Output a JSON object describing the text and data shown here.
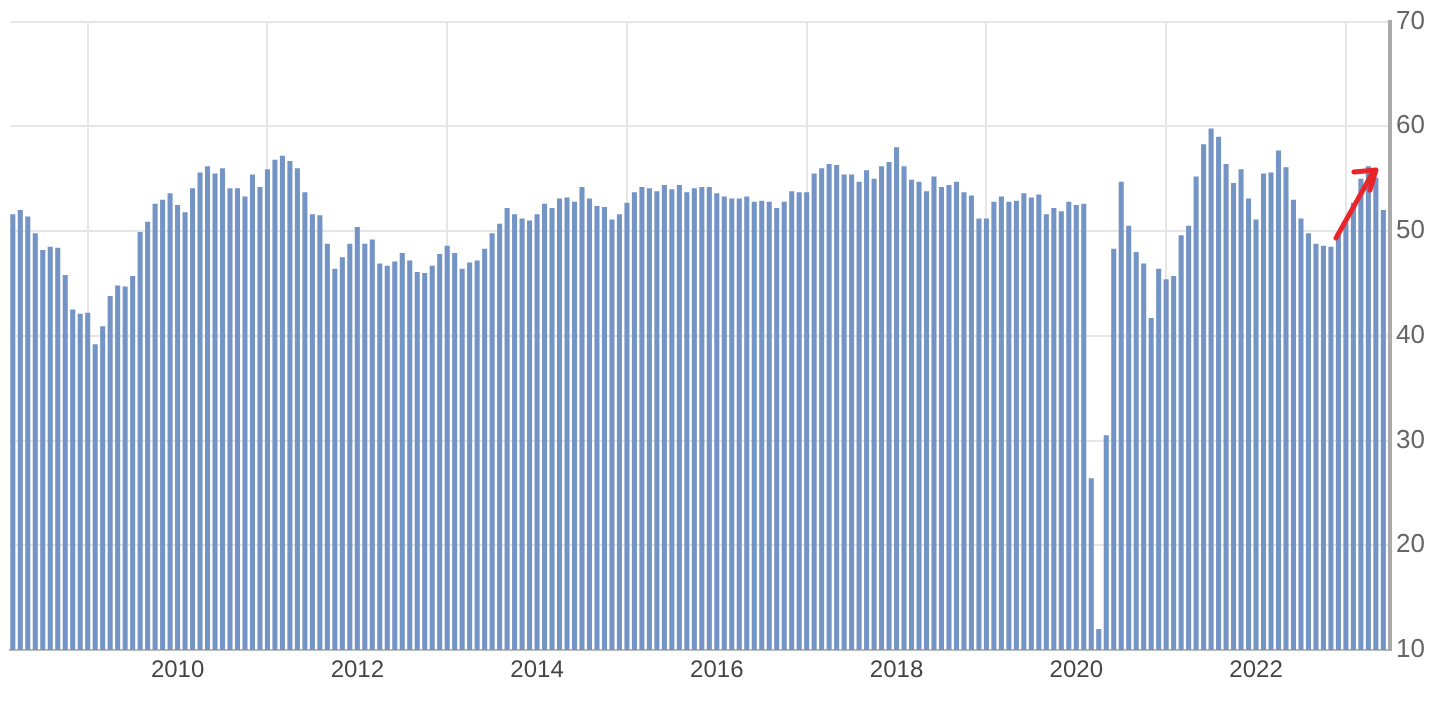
{
  "chart_data": {
    "type": "bar",
    "color": "#7394c4",
    "x": [
      "2008-03",
      "2008-04",
      "2008-05",
      "2008-06",
      "2008-07",
      "2008-08",
      "2008-09",
      "2008-10",
      "2008-11",
      "2008-12",
      "2009-01",
      "2009-02",
      "2009-03",
      "2009-04",
      "2009-05",
      "2009-06",
      "2009-07",
      "2009-08",
      "2009-09",
      "2009-10",
      "2009-11",
      "2009-12",
      "2010-01",
      "2010-02",
      "2010-03",
      "2010-04",
      "2010-05",
      "2010-06",
      "2010-07",
      "2010-08",
      "2010-09",
      "2010-10",
      "2010-11",
      "2010-12",
      "2011-01",
      "2011-02",
      "2011-03",
      "2011-04",
      "2011-05",
      "2011-06",
      "2011-07",
      "2011-08",
      "2011-09",
      "2011-10",
      "2011-11",
      "2011-12",
      "2012-01",
      "2012-02",
      "2012-03",
      "2012-04",
      "2012-05",
      "2012-06",
      "2012-07",
      "2012-08",
      "2012-09",
      "2012-10",
      "2012-11",
      "2012-12",
      "2013-01",
      "2013-02",
      "2013-03",
      "2013-04",
      "2013-05",
      "2013-06",
      "2013-07",
      "2013-08",
      "2013-09",
      "2013-10",
      "2013-11",
      "2013-12",
      "2014-01",
      "2014-02",
      "2014-03",
      "2014-04",
      "2014-05",
      "2014-06",
      "2014-07",
      "2014-08",
      "2014-09",
      "2014-10",
      "2014-11",
      "2014-12",
      "2015-01",
      "2015-02",
      "2015-03",
      "2015-04",
      "2015-05",
      "2015-06",
      "2015-07",
      "2015-08",
      "2015-09",
      "2015-10",
      "2015-11",
      "2015-12",
      "2016-01",
      "2016-02",
      "2016-03",
      "2016-04",
      "2016-05",
      "2016-06",
      "2016-07",
      "2016-08",
      "2016-09",
      "2016-10",
      "2016-11",
      "2016-12",
      "2017-01",
      "2017-02",
      "2017-03",
      "2017-04",
      "2017-05",
      "2017-06",
      "2017-07",
      "2017-08",
      "2017-09",
      "2017-10",
      "2017-11",
      "2017-12",
      "2018-01",
      "2018-02",
      "2018-03",
      "2018-04",
      "2018-05",
      "2018-06",
      "2018-07",
      "2018-08",
      "2018-09",
      "2018-10",
      "2018-11",
      "2018-12",
      "2019-01",
      "2019-02",
      "2019-03",
      "2019-04",
      "2019-05",
      "2019-06",
      "2019-07",
      "2019-08",
      "2019-09",
      "2019-10",
      "2019-11",
      "2019-12",
      "2020-01",
      "2020-02",
      "2020-03",
      "2020-04",
      "2020-05",
      "2020-06",
      "2020-07",
      "2020-08",
      "2020-09",
      "2020-10",
      "2020-11",
      "2020-12",
      "2021-01",
      "2021-02",
      "2021-03",
      "2021-04",
      "2021-05",
      "2021-06",
      "2021-07",
      "2021-08",
      "2021-09",
      "2021-10",
      "2021-11",
      "2021-12",
      "2022-01",
      "2022-02",
      "2022-03",
      "2022-04",
      "2022-05",
      "2022-06",
      "2022-07",
      "2022-08",
      "2022-09",
      "2022-10",
      "2022-11",
      "2022-12",
      "2023-01",
      "2023-02",
      "2023-03",
      "2023-04",
      "2023-05",
      "2023-06"
    ],
    "values": [
      51.6,
      52.0,
      51.4,
      49.8,
      48.2,
      48.5,
      48.4,
      45.8,
      42.5,
      42.1,
      42.2,
      39.2,
      40.9,
      43.8,
      44.8,
      44.7,
      45.7,
      49.9,
      50.9,
      52.6,
      53.0,
      53.6,
      52.5,
      51.8,
      54.1,
      55.6,
      56.2,
      55.5,
      56.0,
      54.1,
      54.1,
      53.3,
      55.4,
      54.2,
      55.9,
      56.8,
      57.2,
      56.7,
      56.0,
      53.7,
      51.6,
      51.5,
      48.8,
      46.4,
      47.5,
      48.8,
      50.4,
      48.8,
      49.2,
      46.9,
      46.7,
      47.1,
      47.9,
      47.2,
      46.1,
      46.0,
      46.7,
      47.8,
      48.6,
      47.9,
      46.4,
      47.0,
      47.2,
      48.3,
      49.8,
      50.7,
      52.2,
      51.6,
      51.2,
      51.0,
      51.6,
      52.6,
      52.2,
      53.1,
      53.2,
      52.8,
      54.2,
      53.1,
      52.4,
      52.3,
      51.1,
      51.6,
      52.7,
      53.7,
      54.2,
      54.1,
      53.8,
      54.4,
      54.0,
      54.4,
      53.7,
      54.1,
      54.2,
      54.2,
      53.6,
      53.3,
      53.1,
      53.1,
      53.3,
      52.8,
      52.9,
      52.8,
      52.2,
      52.8,
      53.8,
      53.7,
      53.7,
      55.5,
      56.0,
      56.4,
      56.3,
      55.4,
      55.4,
      54.7,
      55.8,
      55.0,
      56.2,
      56.6,
      58.0,
      56.2,
      54.9,
      54.7,
      53.8,
      55.2,
      54.2,
      54.4,
      54.7,
      53.7,
      53.4,
      51.2,
      51.2,
      52.8,
      53.3,
      52.8,
      52.9,
      53.6,
      53.2,
      53.5,
      51.6,
      52.2,
      51.9,
      52.8,
      52.5,
      52.6,
      26.4,
      12.0,
      30.5,
      48.3,
      54.7,
      50.5,
      48.0,
      46.9,
      41.7,
      46.4,
      45.4,
      45.7,
      49.6,
      50.5,
      55.2,
      58.3,
      59.8,
      59.0,
      56.4,
      54.6,
      55.9,
      53.1,
      51.1,
      55.5,
      55.6,
      57.7,
      56.1,
      53.0,
      51.2,
      49.8,
      48.8,
      48.6,
      48.5,
      49.8,
      50.8,
      52.7,
      55.0,
      56.2,
      55.1,
      52.0
    ],
    "xlim": [
      "2008-02-20",
      "2023-06-28"
    ],
    "xticks": [
      "2010",
      "2012",
      "2014",
      "2016",
      "2018",
      "2020",
      "2022"
    ],
    "ylim": [
      10,
      70
    ],
    "yticks": [
      10,
      20,
      30,
      40,
      50,
      60,
      70
    ],
    "grid": true,
    "legend": false
  }
}
